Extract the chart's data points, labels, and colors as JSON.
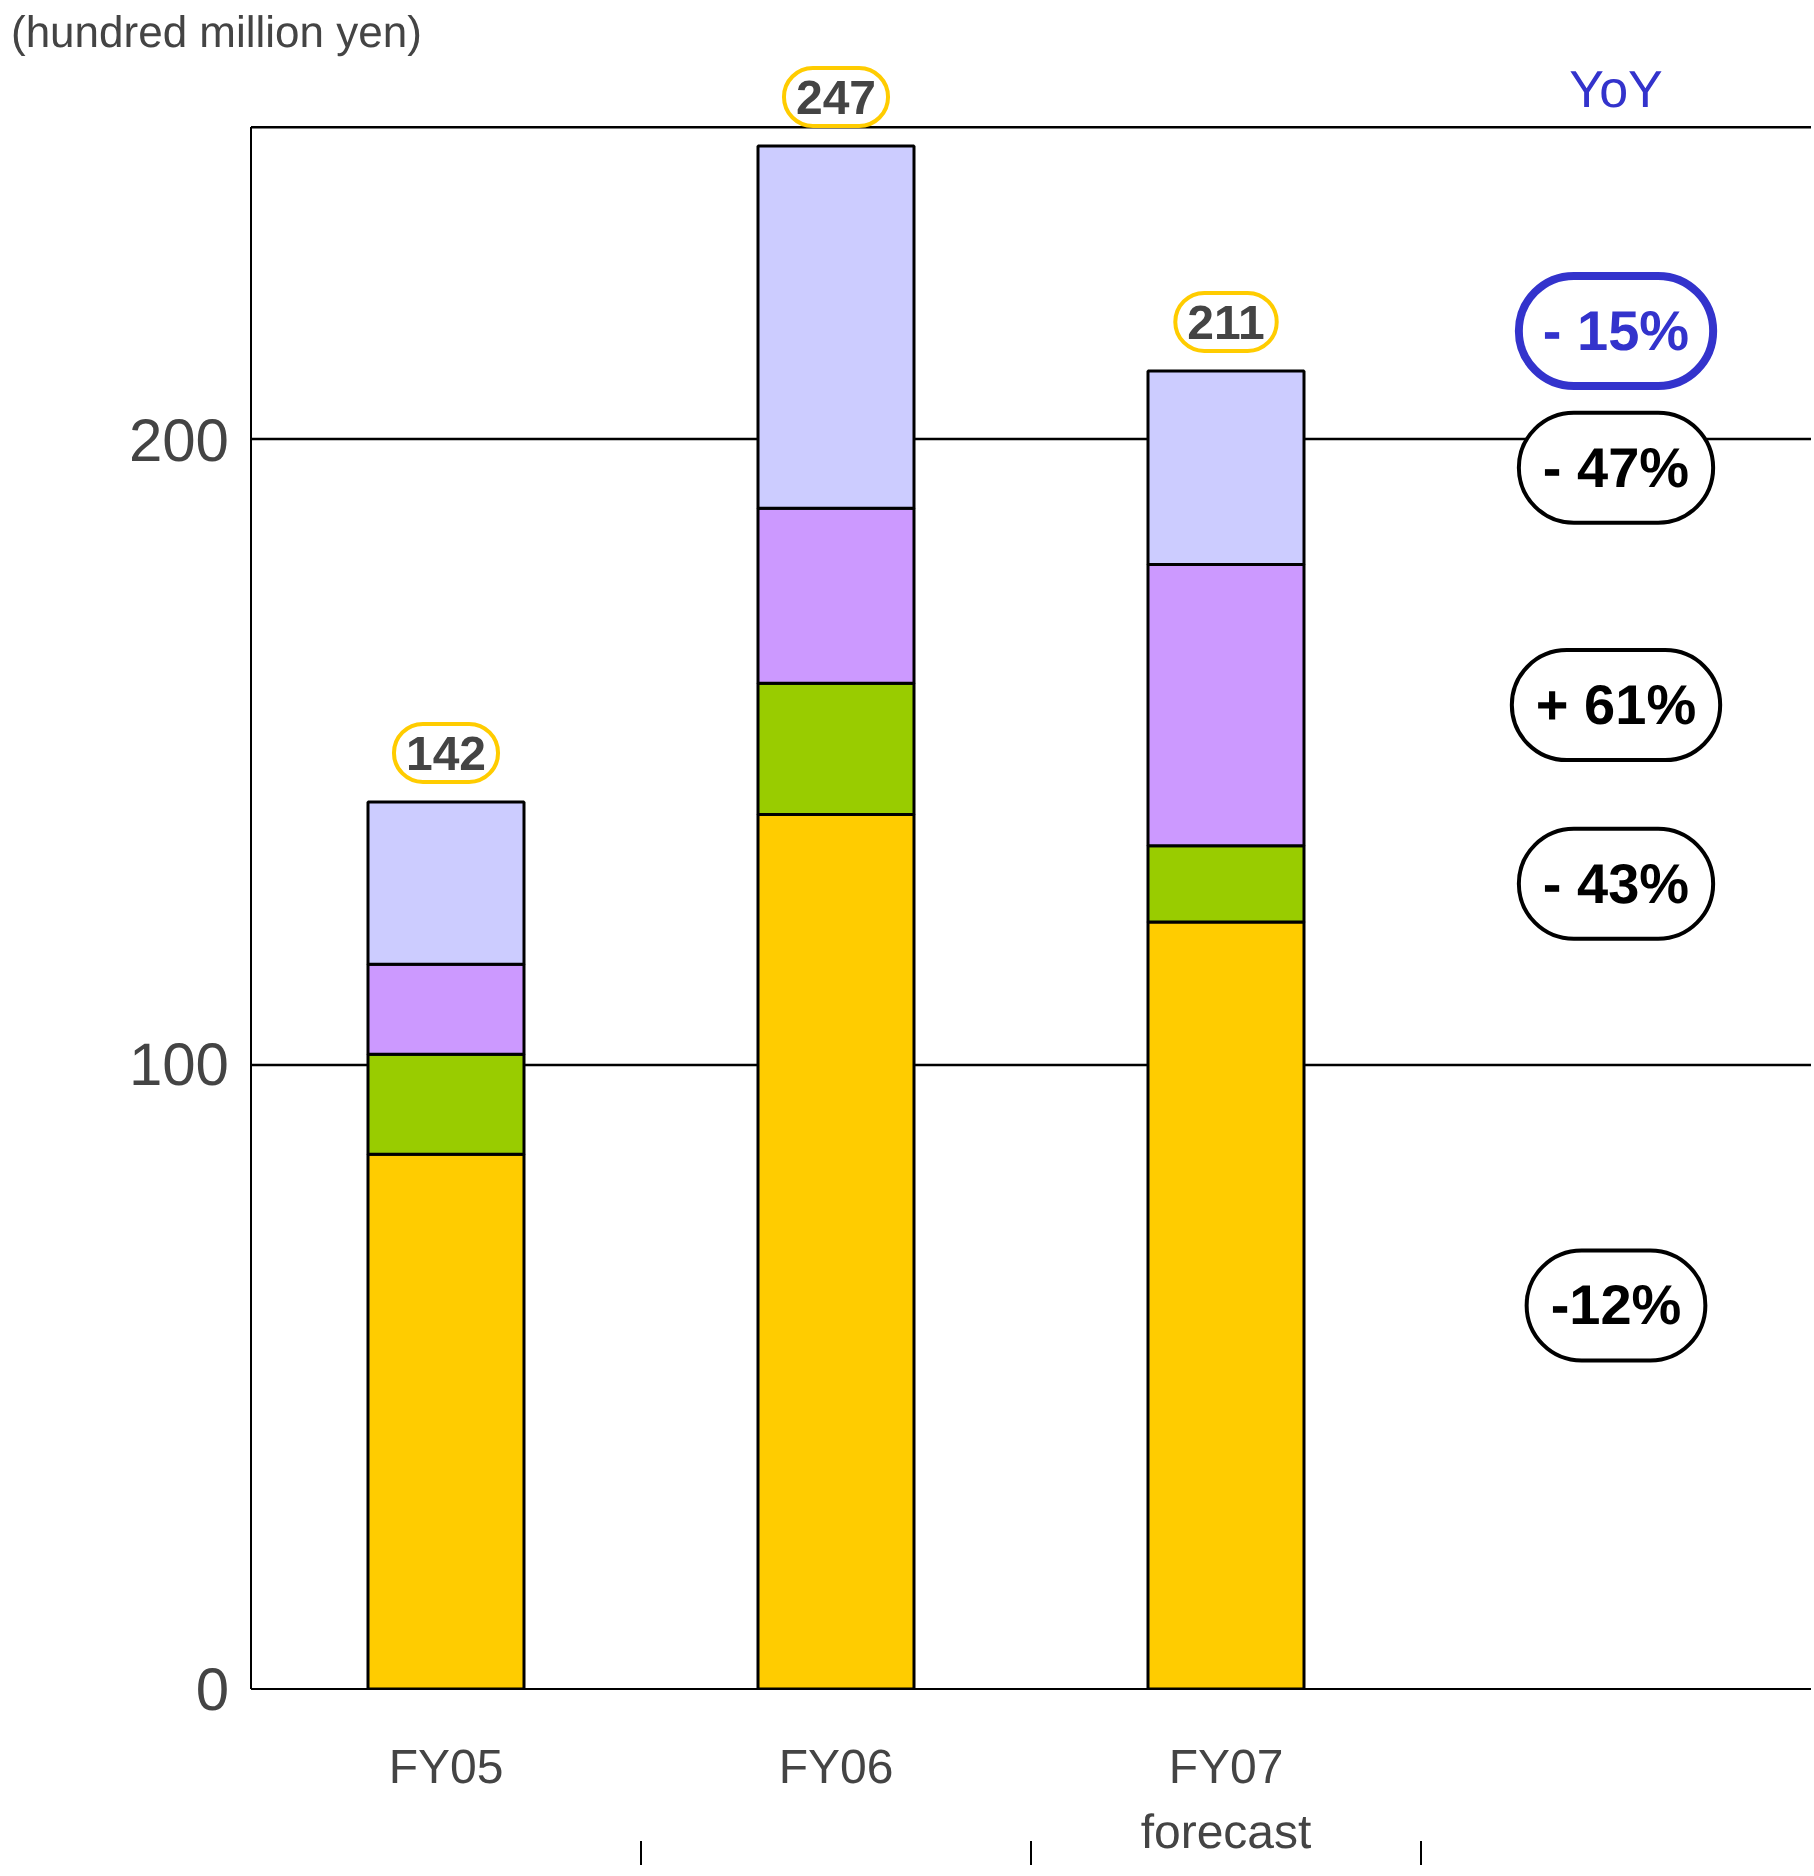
{
  "chart_data": {
    "type": "bar",
    "stacked": true,
    "ylabel": "(hundred million yen)",
    "categories": [
      "FY05",
      "FY06",
      "FY07\nforecast",
      null
    ],
    "series": [
      {
        "color": "#ffcc00",
        "values": [
          85.6,
          140,
          122.8,
          null
        ]
      },
      {
        "color": "#99cc00",
        "values": [
          16,
          21,
          12.2,
          null
        ]
      },
      {
        "color": "#cc99ff",
        "values": [
          14.4,
          28,
          45,
          null
        ]
      },
      {
        "color": "#ccccff",
        "values": [
          26,
          58,
          31,
          null
        ]
      }
    ],
    "totals": [
      "142",
      "247",
      "211",
      null
    ],
    "ylim": [
      0,
      250
    ],
    "yticks": [
      0,
      100,
      200
    ],
    "grid": "y",
    "annotations": [
      "YoY",
      "- 15%",
      "- 47%",
      "+ 61%",
      "- 43%",
      "-12%"
    ]
  }
}
